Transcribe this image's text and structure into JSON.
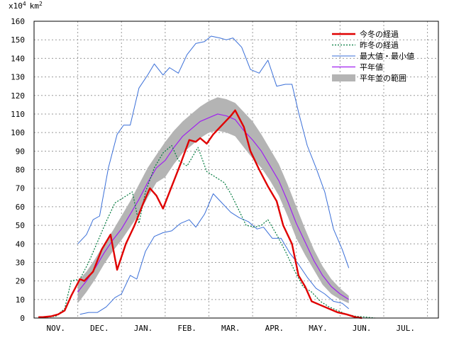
{
  "chart_data": {
    "type": "line",
    "title": "",
    "unit_label": {
      "base": "x10",
      "exp": "4",
      "unit": "km",
      "unit_exp": "2"
    },
    "ylabel": "",
    "xlabel": "",
    "ylim": [
      0,
      160
    ],
    "yticks": [
      0,
      10,
      20,
      30,
      40,
      50,
      60,
      70,
      80,
      90,
      100,
      110,
      120,
      130,
      140,
      150,
      160
    ],
    "xlim": [
      0,
      9.25
    ],
    "month_labels": [
      {
        "label": "NOV.",
        "pos": 0.5
      },
      {
        "label": "DEC.",
        "pos": 1.5
      },
      {
        "label": "JAN.",
        "pos": 2.5
      },
      {
        "label": "FEB.",
        "pos": 3.5
      },
      {
        "label": "MAR.",
        "pos": 4.5
      },
      {
        "label": "APR.",
        "pos": 5.5
      },
      {
        "label": "MAY.",
        "pos": 6.5
      },
      {
        "label": "JUN.",
        "pos": 7.5
      },
      {
        "label": "JUL.",
        "pos": 8.5
      }
    ],
    "grid": true,
    "legend_position": "top-right",
    "colors": {
      "current": "#e00000",
      "last": "#007a3d",
      "maxmin": "#3a6fd8",
      "normal": "#a020f0",
      "range": "#b4b4b4",
      "grid": "#9a9a9a"
    },
    "legend": [
      {
        "key": "current",
        "label": "今冬の経過"
      },
      {
        "key": "last",
        "label": "昨冬の経過"
      },
      {
        "key": "maxmin",
        "label": "最大値・最小値"
      },
      {
        "key": "normal",
        "label": "平年値"
      },
      {
        "key": "range",
        "label": "平年並の範囲"
      }
    ],
    "series": [
      {
        "key": "current",
        "name": "今冬の経過",
        "points": [
          [
            0.1,
            0.5
          ],
          [
            0.2,
            0.5
          ],
          [
            0.4,
            1
          ],
          [
            0.55,
            2
          ],
          [
            0.7,
            4
          ],
          [
            0.85,
            12
          ],
          [
            1.05,
            21
          ],
          [
            1.15,
            20
          ],
          [
            1.35,
            25
          ],
          [
            1.55,
            37
          ],
          [
            1.75,
            45
          ],
          [
            1.9,
            26
          ],
          [
            2.1,
            40
          ],
          [
            2.3,
            50
          ],
          [
            2.5,
            62
          ],
          [
            2.65,
            70
          ],
          [
            2.8,
            66
          ],
          [
            2.95,
            59
          ],
          [
            3.15,
            71
          ],
          [
            3.35,
            83
          ],
          [
            3.55,
            96
          ],
          [
            3.7,
            95
          ],
          [
            3.8,
            97
          ],
          [
            3.95,
            94
          ],
          [
            4.1,
            99
          ],
          [
            4.3,
            104
          ],
          [
            4.5,
            109
          ],
          [
            4.6,
            112
          ],
          [
            4.8,
            103
          ],
          [
            4.95,
            90
          ],
          [
            5.15,
            80
          ],
          [
            5.35,
            71
          ],
          [
            5.55,
            63
          ],
          [
            5.7,
            50
          ],
          [
            5.9,
            40
          ],
          [
            6.05,
            23
          ],
          [
            6.2,
            17
          ],
          [
            6.35,
            9
          ],
          [
            6.55,
            7
          ],
          [
            6.75,
            5
          ],
          [
            6.95,
            3
          ],
          [
            7.15,
            2
          ],
          [
            7.35,
            0.5
          ],
          [
            7.5,
            0
          ]
        ]
      },
      {
        "key": "last",
        "name": "昨冬の経過",
        "points": [
          [
            0.1,
            0.5
          ],
          [
            0.3,
            0.5
          ],
          [
            0.5,
            1
          ],
          [
            0.7,
            5
          ],
          [
            0.85,
            20
          ],
          [
            1.05,
            21
          ],
          [
            1.25,
            30
          ],
          [
            1.45,
            41
          ],
          [
            1.65,
            52
          ],
          [
            1.85,
            62
          ],
          [
            2.05,
            65
          ],
          [
            2.25,
            68
          ],
          [
            2.4,
            51
          ],
          [
            2.55,
            68
          ],
          [
            2.75,
            81
          ],
          [
            2.95,
            89
          ],
          [
            3.15,
            93
          ],
          [
            3.3,
            85
          ],
          [
            3.5,
            82
          ],
          [
            3.75,
            92
          ],
          [
            3.95,
            79
          ],
          [
            4.15,
            76
          ],
          [
            4.35,
            73
          ],
          [
            4.5,
            67
          ],
          [
            4.65,
            60
          ],
          [
            4.85,
            50
          ],
          [
            5.05,
            49
          ],
          [
            5.2,
            50
          ],
          [
            5.35,
            53
          ],
          [
            5.55,
            45
          ],
          [
            5.75,
            36
          ],
          [
            5.95,
            26
          ],
          [
            6.15,
            17
          ],
          [
            6.35,
            14
          ],
          [
            6.55,
            9
          ],
          [
            6.75,
            6
          ],
          [
            6.95,
            4
          ],
          [
            7.15,
            2
          ],
          [
            7.35,
            1
          ],
          [
            7.6,
            0.5
          ],
          [
            7.8,
            0
          ]
        ]
      },
      {
        "key": "max",
        "name": "最大値",
        "points": [
          [
            1.0,
            40
          ],
          [
            1.2,
            45
          ],
          [
            1.35,
            53
          ],
          [
            1.5,
            55
          ],
          [
            1.7,
            81
          ],
          [
            1.9,
            99
          ],
          [
            2.05,
            104
          ],
          [
            2.2,
            104
          ],
          [
            2.4,
            124
          ],
          [
            2.6,
            131
          ],
          [
            2.75,
            137
          ],
          [
            2.95,
            131
          ],
          [
            3.1,
            135
          ],
          [
            3.3,
            132
          ],
          [
            3.5,
            142
          ],
          [
            3.7,
            148
          ],
          [
            3.9,
            149
          ],
          [
            4.05,
            152
          ],
          [
            4.25,
            151
          ],
          [
            4.4,
            150
          ],
          [
            4.55,
            151
          ],
          [
            4.75,
            146
          ],
          [
            4.95,
            134
          ],
          [
            5.15,
            132
          ],
          [
            5.35,
            139
          ],
          [
            5.55,
            125
          ],
          [
            5.75,
            126
          ],
          [
            5.9,
            126
          ],
          [
            6.05,
            111
          ],
          [
            6.25,
            93
          ],
          [
            6.45,
            81
          ],
          [
            6.65,
            68
          ],
          [
            6.85,
            48
          ],
          [
            7.05,
            37
          ],
          [
            7.2,
            27
          ]
        ]
      },
      {
        "key": "min",
        "name": "最小値",
        "points": [
          [
            1.05,
            2
          ],
          [
            1.25,
            3
          ],
          [
            1.45,
            3
          ],
          [
            1.65,
            6
          ],
          [
            1.85,
            11
          ],
          [
            2.0,
            13
          ],
          [
            2.2,
            23
          ],
          [
            2.35,
            21
          ],
          [
            2.55,
            36
          ],
          [
            2.75,
            44
          ],
          [
            2.95,
            46
          ],
          [
            3.15,
            47
          ],
          [
            3.35,
            51
          ],
          [
            3.55,
            53
          ],
          [
            3.7,
            49
          ],
          [
            3.9,
            56
          ],
          [
            4.1,
            67
          ],
          [
            4.3,
            62
          ],
          [
            4.5,
            57
          ],
          [
            4.7,
            54
          ],
          [
            4.9,
            52
          ],
          [
            5.1,
            48
          ],
          [
            5.25,
            49
          ],
          [
            5.45,
            43
          ],
          [
            5.65,
            43
          ],
          [
            5.85,
            35
          ],
          [
            6.05,
            29
          ],
          [
            6.25,
            22
          ],
          [
            6.45,
            16
          ],
          [
            6.65,
            13
          ],
          [
            6.85,
            9
          ],
          [
            7.05,
            8
          ],
          [
            7.2,
            5
          ]
        ]
      },
      {
        "key": "normal",
        "name": "平年値",
        "points": [
          [
            1.0,
            14
          ],
          [
            1.2,
            20
          ],
          [
            1.4,
            27
          ],
          [
            1.6,
            35
          ],
          [
            1.8,
            42
          ],
          [
            2.0,
            48
          ],
          [
            2.2,
            56
          ],
          [
            2.4,
            64
          ],
          [
            2.6,
            73
          ],
          [
            2.8,
            81
          ],
          [
            3.0,
            85
          ],
          [
            3.2,
            92
          ],
          [
            3.4,
            98
          ],
          [
            3.6,
            102
          ],
          [
            3.8,
            106
          ],
          [
            4.0,
            108
          ],
          [
            4.2,
            110
          ],
          [
            4.4,
            109
          ],
          [
            4.6,
            107
          ],
          [
            4.8,
            101
          ],
          [
            5.0,
            96
          ],
          [
            5.2,
            90
          ],
          [
            5.4,
            82
          ],
          [
            5.6,
            74
          ],
          [
            5.8,
            63
          ],
          [
            6.0,
            51
          ],
          [
            6.2,
            41
          ],
          [
            6.4,
            31
          ],
          [
            6.6,
            23
          ],
          [
            6.8,
            17
          ],
          [
            7.0,
            13
          ],
          [
            7.2,
            10
          ]
        ]
      }
    ],
    "band": {
      "key": "range",
      "name": "平年並の範囲",
      "upper": [
        [
          1.0,
          20
        ],
        [
          1.2,
          25
        ],
        [
          1.4,
          32
        ],
        [
          1.6,
          40
        ],
        [
          1.8,
          47
        ],
        [
          2.0,
          55
        ],
        [
          2.2,
          63
        ],
        [
          2.4,
          72
        ],
        [
          2.6,
          81
        ],
        [
          2.8,
          88
        ],
        [
          3.0,
          95
        ],
        [
          3.2,
          101
        ],
        [
          3.4,
          106
        ],
        [
          3.6,
          110
        ],
        [
          3.8,
          114
        ],
        [
          4.0,
          117
        ],
        [
          4.2,
          119
        ],
        [
          4.4,
          118
        ],
        [
          4.6,
          116
        ],
        [
          4.8,
          111
        ],
        [
          5.0,
          106
        ],
        [
          5.2,
          99
        ],
        [
          5.4,
          91
        ],
        [
          5.6,
          83
        ],
        [
          5.8,
          72
        ],
        [
          6.0,
          60
        ],
        [
          6.2,
          48
        ],
        [
          6.4,
          37
        ],
        [
          6.6,
          28
        ],
        [
          6.8,
          21
        ],
        [
          7.0,
          16
        ],
        [
          7.2,
          12
        ]
      ],
      "lower": [
        [
          1.0,
          8
        ],
        [
          1.2,
          14
        ],
        [
          1.4,
          21
        ],
        [
          1.6,
          29
        ],
        [
          1.8,
          36
        ],
        [
          2.0,
          42
        ],
        [
          2.2,
          49
        ],
        [
          2.4,
          56
        ],
        [
          2.6,
          65
        ],
        [
          2.8,
          73
        ],
        [
          3.0,
          76
        ],
        [
          3.2,
          83
        ],
        [
          3.4,
          89
        ],
        [
          3.6,
          93
        ],
        [
          3.8,
          97
        ],
        [
          4.0,
          100
        ],
        [
          4.2,
          101
        ],
        [
          4.4,
          100
        ],
        [
          4.6,
          98
        ],
        [
          4.8,
          92
        ],
        [
          5.0,
          86
        ],
        [
          5.2,
          81
        ],
        [
          5.4,
          74
        ],
        [
          5.6,
          66
        ],
        [
          5.8,
          55
        ],
        [
          6.0,
          43
        ],
        [
          6.2,
          34
        ],
        [
          6.4,
          26
        ],
        [
          6.6,
          18
        ],
        [
          6.8,
          13
        ],
        [
          7.0,
          10
        ],
        [
          7.2,
          8
        ]
      ]
    }
  }
}
